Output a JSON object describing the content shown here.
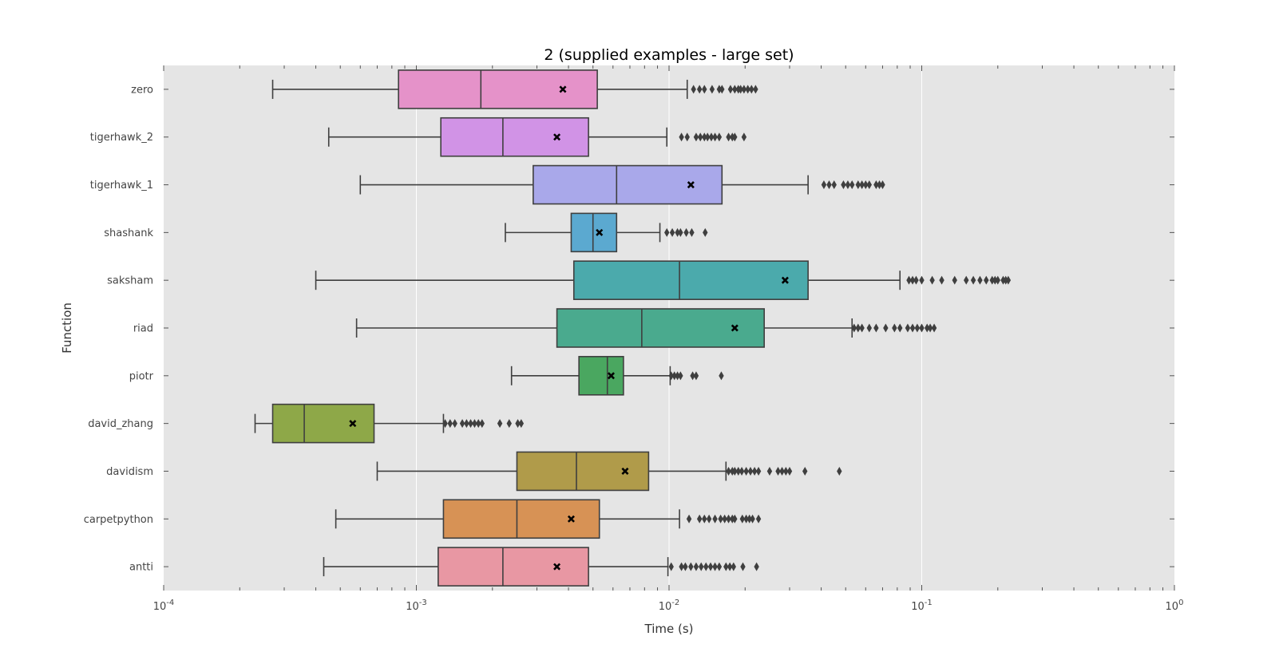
{
  "chart_data": {
    "type": "box",
    "orientation": "horizontal",
    "title": "2 (supplied examples - large set)",
    "xlabel": "Time (s)",
    "ylabel": "Function",
    "x_scale": "log",
    "xlim": [
      0.0001,
      1
    ],
    "x_ticks": [
      {
        "value": 0.0001,
        "base": "10",
        "exp": "-4"
      },
      {
        "value": 0.001,
        "base": "10",
        "exp": "-3"
      },
      {
        "value": 0.01,
        "base": "10",
        "exp": "-2"
      },
      {
        "value": 0.1,
        "base": "10",
        "exp": "-1"
      },
      {
        "value": 1,
        "base": "10",
        "exp": "0"
      }
    ],
    "grid": true,
    "background_color": "#e5e5e5",
    "mean_marker": "x",
    "series": [
      {
        "name": "zero",
        "color": "#e592c9",
        "whisker_low": 0.00027,
        "q1": 0.00085,
        "median": 0.0018,
        "q3": 0.0052,
        "whisker_high": 0.0118,
        "mean": 0.0038,
        "outliers": [
          0.0125,
          0.0132,
          0.0138,
          0.0148,
          0.0158,
          0.0162,
          0.0175,
          0.0182,
          0.0188,
          0.0192,
          0.0198,
          0.0205,
          0.0212,
          0.022
        ]
      },
      {
        "name": "tigerhawk_2",
        "color": "#d193e6",
        "whisker_low": 0.00045,
        "q1": 0.00125,
        "median": 0.0022,
        "q3": 0.0048,
        "whisker_high": 0.0098,
        "mean": 0.0036,
        "outliers": [
          0.0112,
          0.0118,
          0.0128,
          0.0133,
          0.0138,
          0.0142,
          0.0147,
          0.0152,
          0.0158,
          0.0172,
          0.0178,
          0.0182,
          0.0198
        ]
      },
      {
        "name": "tigerhawk_1",
        "color": "#a9a8ea",
        "whisker_low": 0.0006,
        "q1": 0.0029,
        "median": 0.0062,
        "q3": 0.0162,
        "whisker_high": 0.0355,
        "mean": 0.0122,
        "outliers": [
          0.041,
          0.043,
          0.045,
          0.049,
          0.051,
          0.053,
          0.056,
          0.058,
          0.06,
          0.062,
          0.066,
          0.068,
          0.07
        ]
      },
      {
        "name": "shashank",
        "color": "#5ba9d0",
        "whisker_low": 0.00225,
        "q1": 0.0041,
        "median": 0.005,
        "q3": 0.0062,
        "whisker_high": 0.0092,
        "mean": 0.0053,
        "outliers": [
          0.0098,
          0.0103,
          0.0108,
          0.0111,
          0.0117,
          0.0123,
          0.0139
        ]
      },
      {
        "name": "saksham",
        "color": "#4baaac",
        "whisker_low": 0.0004,
        "q1": 0.0042,
        "median": 0.011,
        "q3": 0.0355,
        "whisker_high": 0.082,
        "mean": 0.0288,
        "outliers": [
          0.089,
          0.092,
          0.095,
          0.1,
          0.11,
          0.12,
          0.135,
          0.15,
          0.16,
          0.17,
          0.18,
          0.19,
          0.195,
          0.2,
          0.21,
          0.215,
          0.22
        ]
      },
      {
        "name": "riad",
        "color": "#4aaa8e",
        "whisker_low": 0.00058,
        "q1": 0.0036,
        "median": 0.0078,
        "q3": 0.0238,
        "whisker_high": 0.053,
        "mean": 0.0182,
        "outliers": [
          0.054,
          0.056,
          0.058,
          0.062,
          0.066,
          0.072,
          0.078,
          0.082,
          0.088,
          0.092,
          0.096,
          0.1,
          0.105,
          0.108,
          0.112
        ]
      },
      {
        "name": "piotr",
        "color": "#4aa760",
        "whisker_low": 0.00238,
        "q1": 0.0044,
        "median": 0.0057,
        "q3": 0.0066,
        "whisker_high": 0.0101,
        "mean": 0.0059,
        "outliers": [
          0.0102,
          0.0105,
          0.0108,
          0.0111,
          0.0124,
          0.0128,
          0.0161
        ]
      },
      {
        "name": "david_zhang",
        "color": "#8ea848",
        "whisker_low": 0.00023,
        "q1": 0.00027,
        "median": 0.00036,
        "q3": 0.00068,
        "whisker_high": 0.00128,
        "mean": 0.00056,
        "outliers": [
          0.0013,
          0.00136,
          0.00142,
          0.00152,
          0.00158,
          0.00164,
          0.0017,
          0.00176,
          0.00182,
          0.00214,
          0.00233,
          0.00252,
          0.0026
        ]
      },
      {
        "name": "davidism",
        "color": "#b09b4a",
        "whisker_low": 0.0007,
        "q1": 0.0025,
        "median": 0.0043,
        "q3": 0.0083,
        "whisker_high": 0.0168,
        "mean": 0.0067,
        "outliers": [
          0.0172,
          0.0178,
          0.0182,
          0.0188,
          0.0194,
          0.0202,
          0.021,
          0.0218,
          0.0226,
          0.025,
          0.027,
          0.028,
          0.029,
          0.03,
          0.0345,
          0.0472
        ]
      },
      {
        "name": "carpetpython",
        "color": "#d79255",
        "whisker_low": 0.00048,
        "q1": 0.00128,
        "median": 0.0025,
        "q3": 0.0053,
        "whisker_high": 0.011,
        "mean": 0.0041,
        "outliers": [
          0.012,
          0.0132,
          0.0138,
          0.0144,
          0.0152,
          0.016,
          0.0166,
          0.0172,
          0.0178,
          0.0182,
          0.0195,
          0.0202,
          0.0208,
          0.0214,
          0.0226
        ]
      },
      {
        "name": "antti",
        "color": "#e897a3",
        "whisker_low": 0.00043,
        "q1": 0.00122,
        "median": 0.0022,
        "q3": 0.0048,
        "whisker_high": 0.0099,
        "mean": 0.0036,
        "outliers": [
          0.0102,
          0.0112,
          0.0116,
          0.0122,
          0.0128,
          0.0134,
          0.014,
          0.0146,
          0.0152,
          0.0158,
          0.0168,
          0.0174,
          0.018,
          0.0196,
          0.0222
        ]
      }
    ]
  }
}
